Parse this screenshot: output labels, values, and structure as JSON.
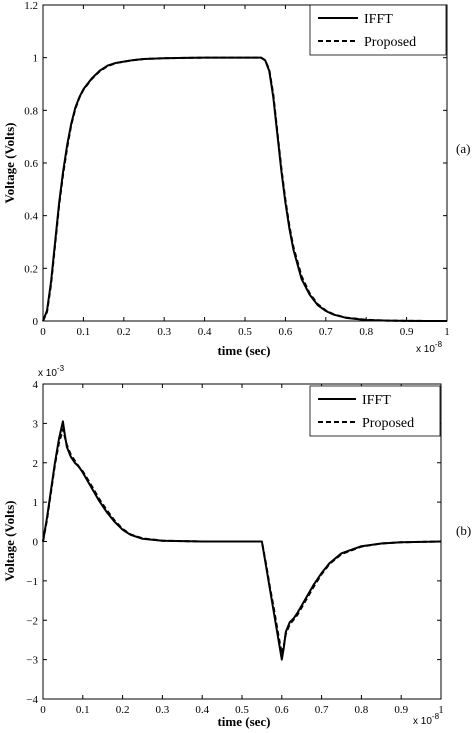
{
  "chart_data": [
    {
      "type": "line",
      "panel_label": "(a)",
      "xlabel": "time (sec)",
      "ylabel": "Voltage (Volts)",
      "x_multiplier": "x 10",
      "x_multiplier_exp": "-8",
      "xlim": [
        0,
        1
      ],
      "ylim": [
        0,
        1.2
      ],
      "x_ticks": [
        0,
        0.1,
        0.2,
        0.3,
        0.4,
        0.5,
        0.6,
        0.7,
        0.8,
        0.9,
        1
      ],
      "x_tick_labels": [
        "0",
        "0.1",
        "0.2",
        "0.3",
        "0.4",
        "0.5",
        "0.6",
        "0.7",
        "0.8",
        "0.9",
        "1"
      ],
      "y_ticks": [
        0,
        0.2,
        0.4,
        0.6,
        0.8,
        1,
        1.2
      ],
      "y_tick_labels": [
        "0",
        "0.2",
        "0.4",
        "0.6",
        "0.8",
        "1",
        "1.2"
      ],
      "legend_position": "top-right",
      "series": [
        {
          "name": "IFFT",
          "style": "solid",
          "x": [
            0,
            0.01,
            0.02,
            0.03,
            0.04,
            0.05,
            0.06,
            0.07,
            0.08,
            0.09,
            0.1,
            0.12,
            0.14,
            0.16,
            0.18,
            0.2,
            0.22,
            0.25,
            0.3,
            0.35,
            0.4,
            0.45,
            0.5,
            0.54,
            0.55,
            0.56,
            0.57,
            0.58,
            0.59,
            0.6,
            0.61,
            0.62,
            0.64,
            0.66,
            0.68,
            0.7,
            0.72,
            0.75,
            0.8,
            0.85,
            0.9,
            0.95,
            1.0
          ],
          "y": [
            0,
            0.04,
            0.15,
            0.3,
            0.45,
            0.57,
            0.67,
            0.75,
            0.81,
            0.85,
            0.88,
            0.92,
            0.95,
            0.97,
            0.98,
            0.985,
            0.99,
            0.995,
            0.998,
            0.999,
            1,
            1,
            1,
            1,
            0.99,
            0.95,
            0.85,
            0.71,
            0.57,
            0.45,
            0.35,
            0.27,
            0.16,
            0.1,
            0.06,
            0.038,
            0.024,
            0.012,
            0.004,
            0.0015,
            0.0005,
            0.0002,
            0
          ]
        },
        {
          "name": "Proposed",
          "style": "dashed",
          "x": [
            0,
            0.01,
            0.02,
            0.03,
            0.04,
            0.05,
            0.06,
            0.07,
            0.08,
            0.09,
            0.1,
            0.12,
            0.14,
            0.16,
            0.18,
            0.2,
            0.22,
            0.25,
            0.3,
            0.35,
            0.4,
            0.45,
            0.5,
            0.54,
            0.55,
            0.56,
            0.57,
            0.58,
            0.59,
            0.6,
            0.61,
            0.62,
            0.64,
            0.66,
            0.68,
            0.7,
            0.72,
            0.75,
            0.8,
            0.85,
            0.9,
            0.95,
            1.0
          ],
          "y": [
            0,
            0.035,
            0.14,
            0.29,
            0.44,
            0.56,
            0.66,
            0.745,
            0.805,
            0.848,
            0.878,
            0.918,
            0.948,
            0.968,
            0.979,
            0.985,
            0.99,
            0.995,
            0.998,
            0.999,
            1,
            1,
            1,
            1,
            0.99,
            0.955,
            0.86,
            0.72,
            0.58,
            0.46,
            0.36,
            0.28,
            0.17,
            0.105,
            0.064,
            0.04,
            0.025,
            0.013,
            0.0045,
            0.0016,
            0.0005,
            0.0002,
            0
          ]
        }
      ]
    },
    {
      "type": "line",
      "panel_label": "(b)",
      "xlabel": "time (sec)",
      "ylabel": "Voltage (Volts)",
      "x_multiplier": "x 10",
      "x_multiplier_exp": "-8",
      "y_multiplier": "x 10",
      "y_multiplier_exp": "-3",
      "xlim": [
        0,
        1
      ],
      "ylim": [
        -4,
        4
      ],
      "x_ticks": [
        0,
        0.1,
        0.2,
        0.3,
        0.4,
        0.5,
        0.6,
        0.7,
        0.8,
        0.9,
        1
      ],
      "x_tick_labels": [
        "0",
        "0.1",
        "0.2",
        "0.3",
        "0.4",
        "0.5",
        "0.6",
        "0.7",
        "0.8",
        "0.9",
        "1"
      ],
      "y_ticks": [
        -4,
        -3,
        -2,
        -1,
        0,
        1,
        2,
        3,
        4
      ],
      "y_tick_labels": [
        "−4",
        "−3",
        "−2",
        "−1",
        "0",
        "1",
        "2",
        "3",
        "4"
      ],
      "legend_position": "top-right",
      "series": [
        {
          "name": "IFFT",
          "style": "solid",
          "x": [
            0,
            0.01,
            0.02,
            0.03,
            0.04,
            0.05,
            0.055,
            0.06,
            0.07,
            0.08,
            0.09,
            0.1,
            0.12,
            0.14,
            0.16,
            0.18,
            0.2,
            0.22,
            0.25,
            0.3,
            0.35,
            0.4,
            0.45,
            0.5,
            0.54,
            0.55,
            0.56,
            0.57,
            0.58,
            0.59,
            0.6,
            0.605,
            0.61,
            0.62,
            0.63,
            0.64,
            0.66,
            0.68,
            0.7,
            0.72,
            0.75,
            0.8,
            0.85,
            0.9,
            0.95,
            1.0
          ],
          "y": [
            0,
            0.6,
            1.3,
            2.0,
            2.6,
            3.05,
            2.7,
            2.4,
            2.15,
            2.0,
            1.9,
            1.75,
            1.4,
            1.05,
            0.75,
            0.5,
            0.3,
            0.17,
            0.07,
            0.02,
            0.01,
            0,
            0,
            0,
            0,
            0,
            -0.6,
            -1.2,
            -1.8,
            -2.4,
            -3.0,
            -2.7,
            -2.3,
            -2.05,
            -1.95,
            -1.8,
            -1.45,
            -1.1,
            -0.8,
            -0.55,
            -0.3,
            -0.12,
            -0.05,
            -0.02,
            -0.01,
            0
          ]
        },
        {
          "name": "Proposed",
          "style": "dashed",
          "x": [
            0,
            0.01,
            0.02,
            0.03,
            0.04,
            0.05,
            0.055,
            0.06,
            0.07,
            0.08,
            0.09,
            0.1,
            0.12,
            0.14,
            0.16,
            0.18,
            0.2,
            0.22,
            0.25,
            0.3,
            0.35,
            0.4,
            0.45,
            0.5,
            0.54,
            0.55,
            0.56,
            0.57,
            0.58,
            0.59,
            0.6,
            0.605,
            0.61,
            0.62,
            0.63,
            0.64,
            0.66,
            0.68,
            0.7,
            0.72,
            0.75,
            0.8,
            0.85,
            0.9,
            0.95,
            1.0
          ],
          "y": [
            0,
            0.55,
            1.25,
            1.95,
            2.5,
            2.85,
            2.65,
            2.45,
            2.2,
            2.05,
            1.9,
            1.78,
            1.45,
            1.1,
            0.8,
            0.53,
            0.32,
            0.18,
            0.08,
            0.02,
            0.01,
            0,
            0,
            0,
            0,
            0,
            -0.55,
            -1.15,
            -1.7,
            -2.3,
            -2.85,
            -2.65,
            -2.35,
            -2.1,
            -1.98,
            -1.85,
            -1.5,
            -1.15,
            -0.83,
            -0.57,
            -0.32,
            -0.13,
            -0.05,
            -0.02,
            -0.01,
            0
          ]
        }
      ]
    }
  ]
}
